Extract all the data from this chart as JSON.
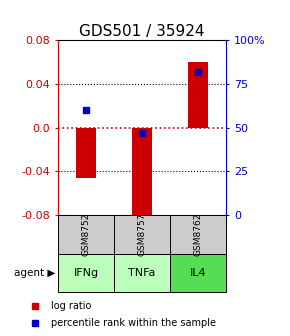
{
  "title": "GDS501 / 35924",
  "samples": [
    "GSM8752",
    "GSM8757",
    "GSM8762"
  ],
  "agents": [
    "IFNg",
    "TNFa",
    "IL4"
  ],
  "log_ratios": [
    -0.046,
    -0.082,
    0.06
  ],
  "percentile_ranks": [
    0.6,
    0.47,
    0.82
  ],
  "ylim_left": [
    -0.08,
    0.08
  ],
  "ylim_right": [
    0.0,
    1.0
  ],
  "bar_color": "#cc0000",
  "dot_color": "#0000cc",
  "zero_line_color": "#cc0000",
  "sample_bg_color": "#cccccc",
  "agent_colors": [
    "#bbffbb",
    "#bbffbb",
    "#55dd55"
  ],
  "left_yticks": [
    -0.08,
    -0.04,
    0.0,
    0.04,
    0.08
  ],
  "right_yticks": [
    0.0,
    0.25,
    0.5,
    0.75,
    1.0
  ],
  "right_yticklabels": [
    "0",
    "25",
    "50",
    "75",
    "100%"
  ],
  "title_fontsize": 11,
  "tick_fontsize": 8,
  "bar_width": 0.35
}
